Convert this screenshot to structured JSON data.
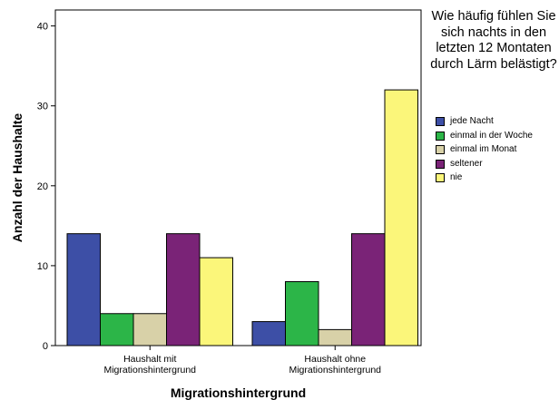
{
  "chart_data": {
    "type": "bar",
    "title": "",
    "xlabel": "Migrationshintergrund",
    "ylabel": "Anzahl der Haushalte",
    "ylim": [
      0,
      42
    ],
    "yticks": [
      0,
      10,
      20,
      30,
      40
    ],
    "grid": false,
    "legend_position": "right",
    "legend_title": "Wie häufig fühlen Sie sich nachts in den letzten 12 Montaten durch Lärm belästigt?",
    "categories": [
      [
        "Haushalt mit",
        "Migrationshintergrund"
      ],
      [
        "Haushalt ohne",
        "Migrationshintergrund"
      ]
    ],
    "series": [
      {
        "name": "jede Nacht",
        "color": "#3d4fa6",
        "values": [
          14,
          3
        ]
      },
      {
        "name": "einmal in der Woche",
        "color": "#2cb548",
        "values": [
          4,
          8
        ]
      },
      {
        "name": "einmal im Monat",
        "color": "#d8d1a8",
        "values": [
          4,
          2
        ]
      },
      {
        "name": "seltener",
        "color": "#7a2377",
        "values": [
          14,
          14
        ]
      },
      {
        "name": "nie",
        "color": "#fbf67a",
        "values": [
          11,
          32
        ]
      }
    ]
  }
}
